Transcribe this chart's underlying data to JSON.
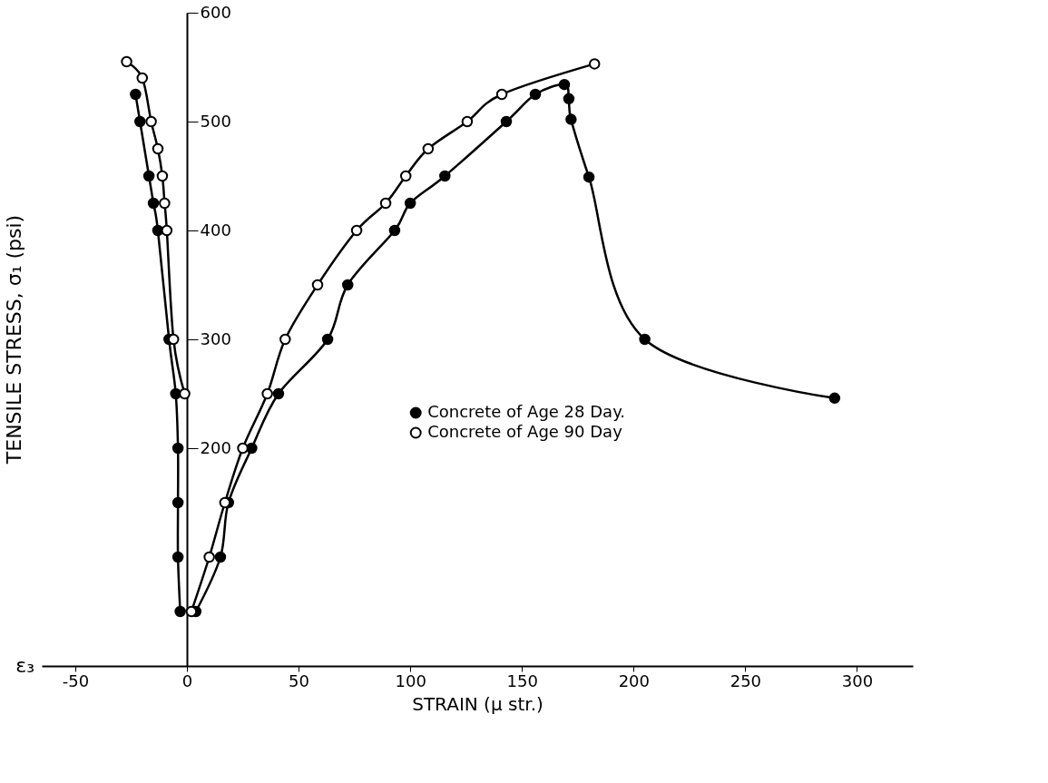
{
  "chart_data": {
    "type": "line",
    "xlabel": "STRAIN  (μ str.)",
    "ylabel": "TENSILE STRESS, σ₁  (psi)",
    "annotations": [
      "ε₃"
    ],
    "xlim": [
      -65,
      325
    ],
    "xticks": [
      -50,
      0,
      50,
      100,
      150,
      200,
      250,
      300
    ],
    "ylim": [
      0,
      600
    ],
    "yticks": [
      200,
      300,
      400,
      500,
      600
    ],
    "grid": false,
    "legend": "right",
    "marker": "circle",
    "line_style": "solid",
    "series": [
      {
        "name": "Concrete of Age 28 Day.",
        "color": "#000000",
        "x": [
          4,
          15,
          18.6,
          29,
          41,
          63,
          72,
          93,
          100,
          115.5,
          143,
          156,
          169,
          171,
          172,
          180,
          205,
          290
        ],
        "values": [
          50,
          100,
          150,
          200,
          250,
          300,
          350,
          400,
          425,
          450,
          500,
          525,
          534,
          521,
          502,
          449,
          300,
          246
        ]
      },
      {
        "name": "Concrete of Age 90 Day",
        "color": "#ffffff",
        "x": [
          2,
          10,
          17,
          25,
          36,
          44,
          58.5,
          76,
          89,
          98,
          108,
          125.5,
          141,
          182.5
        ],
        "values": [
          50,
          100,
          150,
          200,
          250,
          300,
          350,
          400,
          425,
          450,
          475,
          500,
          525,
          553
        ]
      },
      {
        "color": "#000000",
        "x": [
          -3,
          -4,
          -4,
          -4,
          -5,
          -8,
          -13,
          -15,
          -17,
          -21,
          -23
        ],
        "values": [
          50,
          100,
          150,
          200,
          250,
          300,
          400,
          425,
          450,
          500,
          525
        ]
      },
      {
        "color": "#ffffff",
        "x": [
          -1,
          -6,
          -9,
          -10,
          -11,
          -13,
          -16,
          -20,
          -27
        ],
        "values": [
          250,
          300,
          400,
          425,
          450,
          475,
          500,
          540,
          555
        ]
      }
    ]
  }
}
